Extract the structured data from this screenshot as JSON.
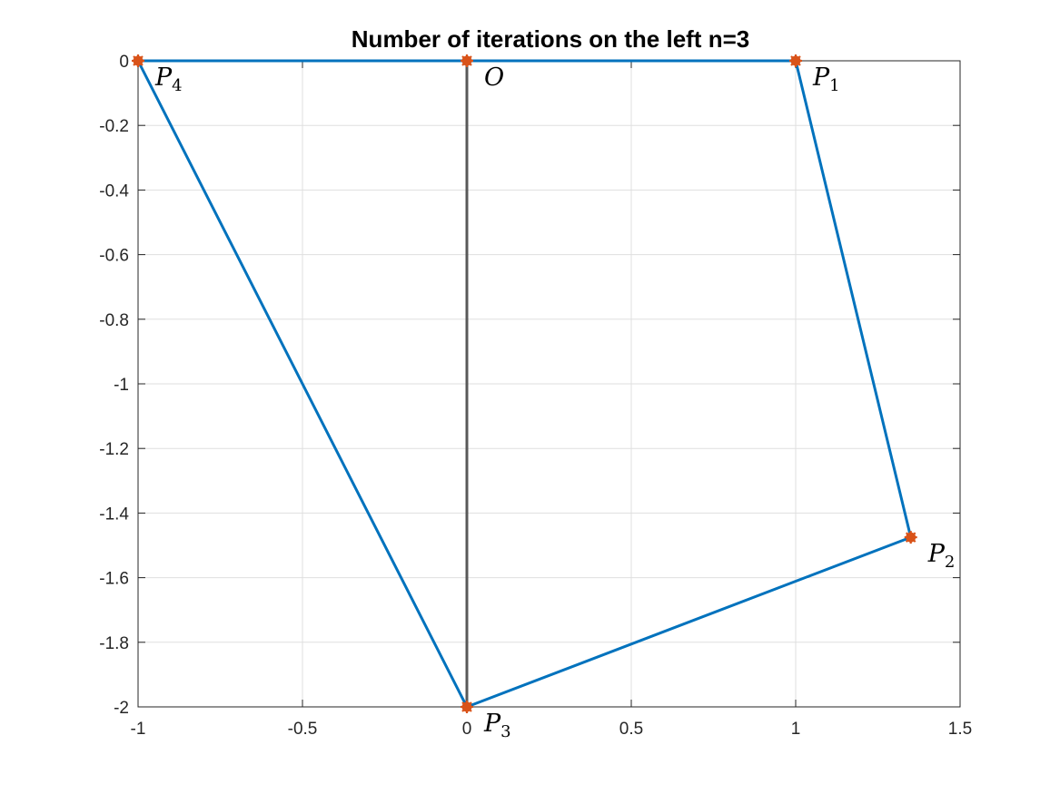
{
  "chart_data": {
    "type": "line",
    "title": "Number of iterations on the left n=3",
    "xlabel": "",
    "ylabel": "",
    "xlim": [
      -1,
      1.5
    ],
    "ylim": [
      -2,
      0
    ],
    "x_ticks": [
      -1,
      -0.5,
      0,
      0.5,
      1,
      1.5
    ],
    "x_tick_labels": [
      "-1",
      "-0.5",
      "0",
      "0.5",
      "1",
      "1.5"
    ],
    "y_ticks": [
      0,
      -0.2,
      -0.4,
      -0.6,
      -0.8,
      -1,
      -1.2,
      -1.4,
      -1.6,
      -1.8,
      -2
    ],
    "y_tick_labels": [
      "0",
      "-0.2",
      "-0.4",
      "-0.6",
      "-0.8",
      "-1",
      "-1.2",
      "-1.4",
      "-1.6",
      "-1.8",
      "-2"
    ],
    "grid": true,
    "box": true,
    "series": [
      {
        "color": "#0072BD",
        "points": [
          {
            "x": -1,
            "y": 0
          },
          {
            "x": 0,
            "y": 0
          },
          {
            "x": 1,
            "y": 0
          },
          {
            "x": 1.35,
            "y": -1.475
          },
          {
            "x": 0,
            "y": -2
          },
          {
            "x": -1,
            "y": 0
          }
        ]
      },
      {
        "color": "#595959",
        "points": [
          {
            "x": 0,
            "y": 0
          },
          {
            "x": 0,
            "y": -2
          }
        ]
      }
    ],
    "markers": {
      "color": "#D95319",
      "points": [
        {
          "x": -1,
          "y": 0,
          "label": "P",
          "sub": "4"
        },
        {
          "x": 0,
          "y": 0,
          "label": "O",
          "sub": ""
        },
        {
          "x": 1,
          "y": 0,
          "label": "P",
          "sub": "1"
        },
        {
          "x": 1.35,
          "y": -1.475,
          "label": "P",
          "sub": "2"
        },
        {
          "x": 0,
          "y": -2,
          "label": "P",
          "sub": "3"
        }
      ]
    },
    "colors": {
      "axes": "#262626",
      "grid": "#dfdfdf"
    }
  }
}
